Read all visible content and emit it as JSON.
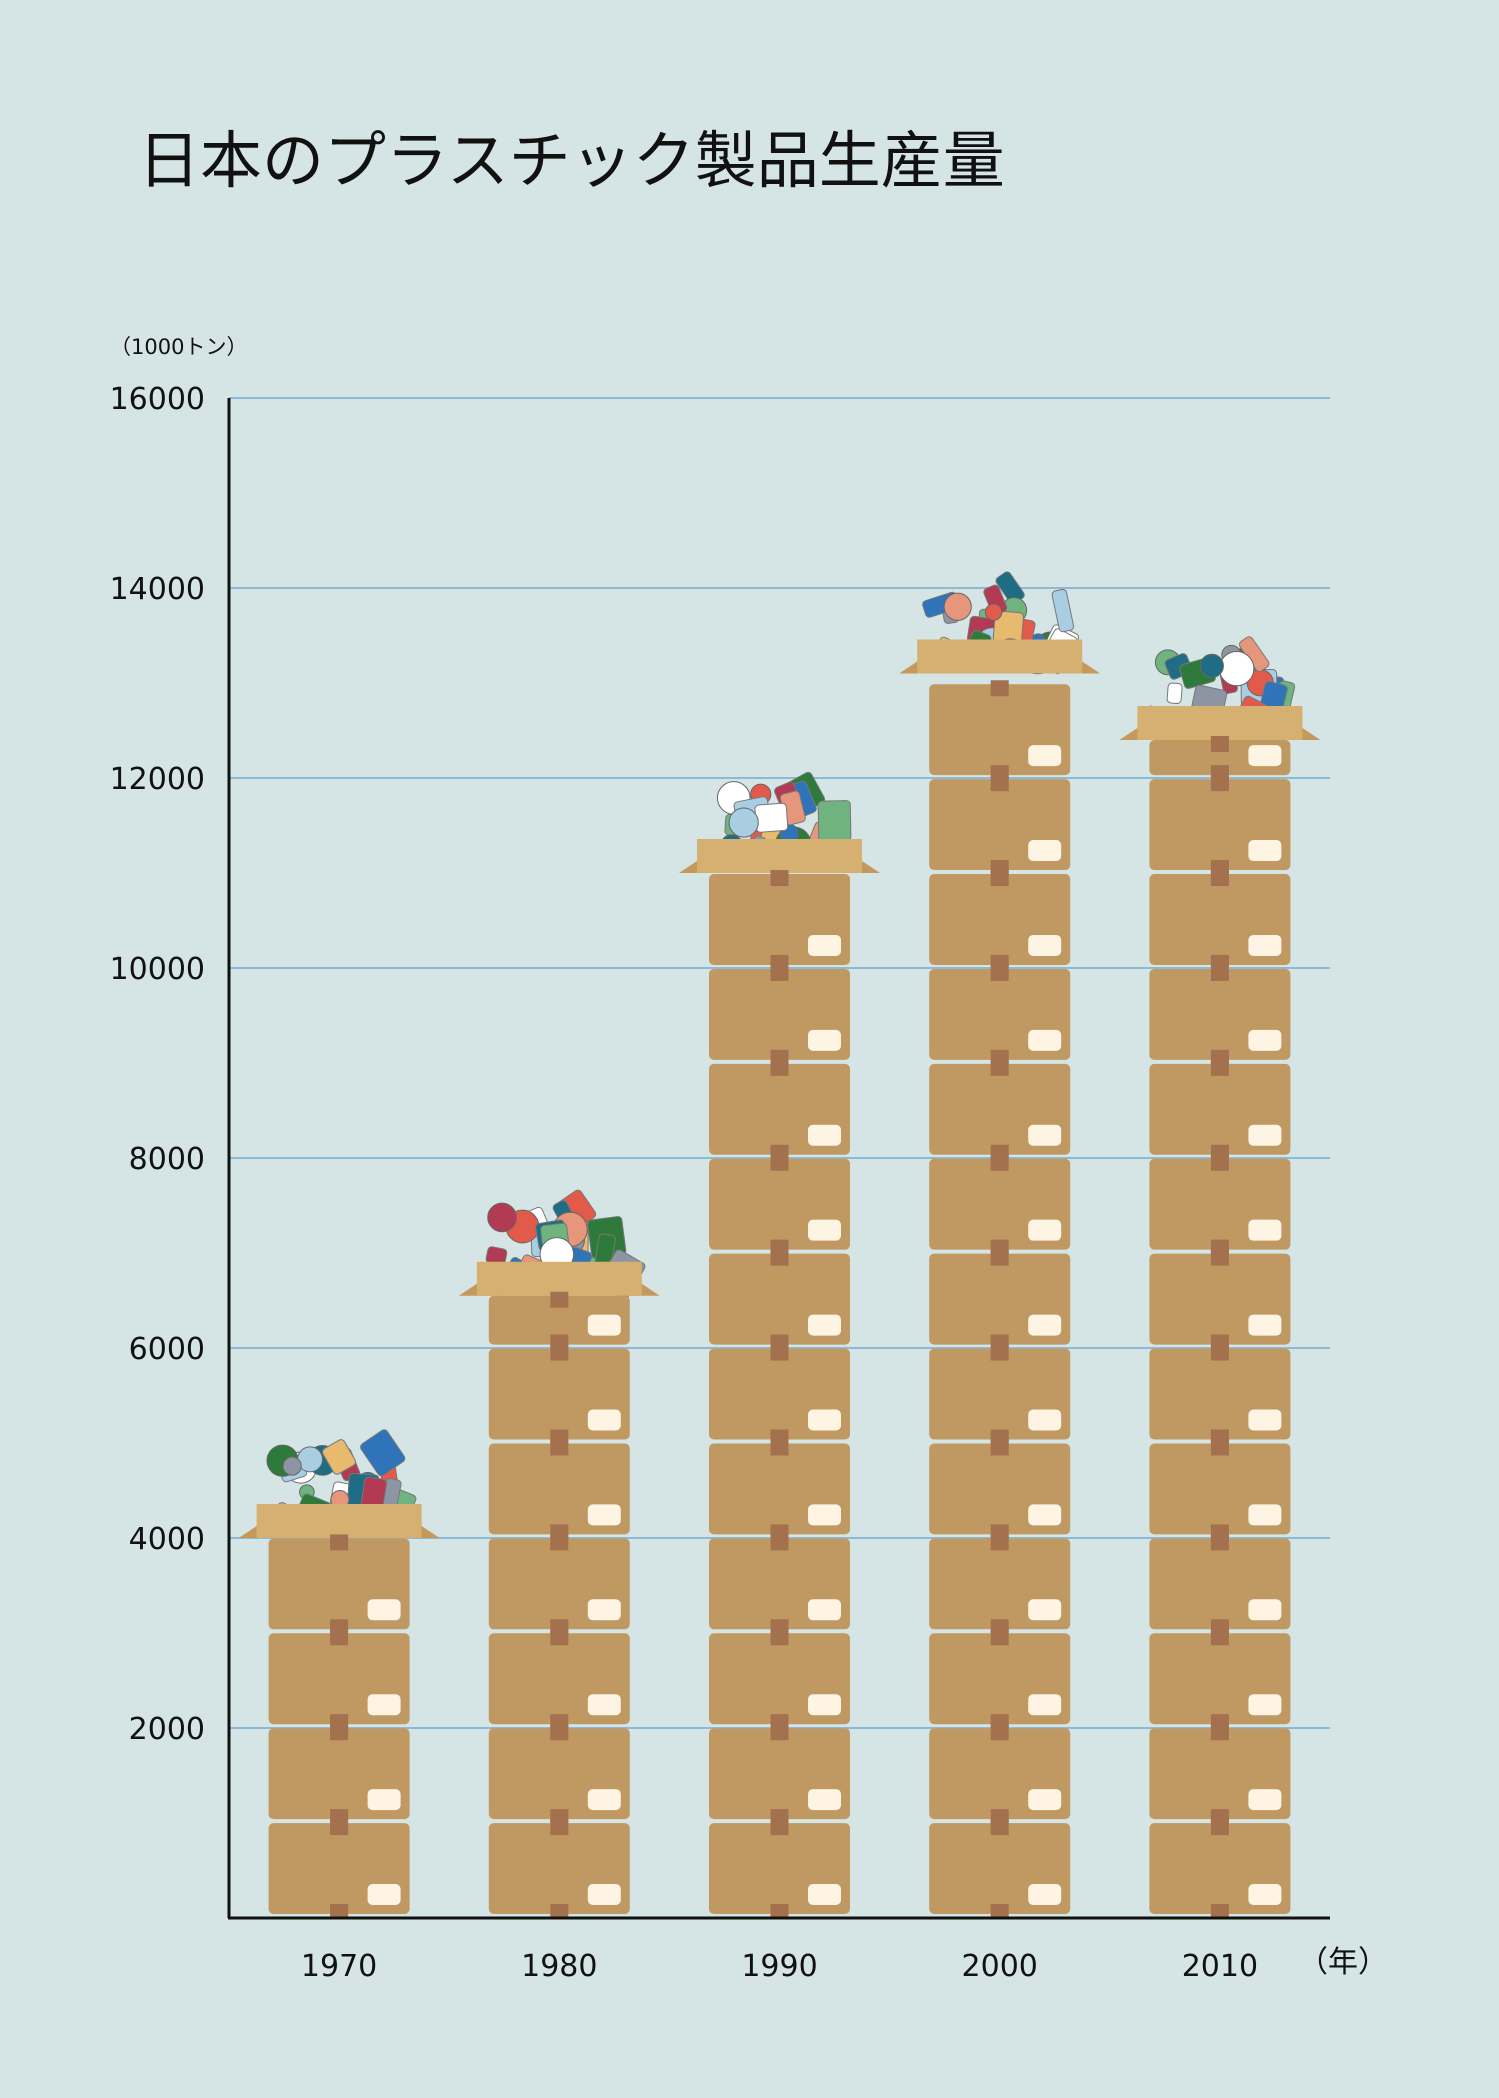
{
  "chart_data": {
    "type": "bar",
    "title": "日本のプラスチック製品生産量",
    "ylabel": "（1000トン）",
    "xlabel": "（年）",
    "categories": [
      "1970",
      "1980",
      "1990",
      "2000",
      "2010"
    ],
    "values": [
      4400,
      6950,
      11400,
      13500,
      12800
    ],
    "ylim": [
      0,
      16000
    ],
    "yticks": [
      "2000",
      "4000",
      "6000",
      "8000",
      "10000",
      "12000",
      "14000",
      "16000"
    ],
    "grid": true,
    "legend": "none"
  },
  "colors": {
    "background": "#d5e4e4",
    "gridline": "#8bb9d6",
    "box": "#bf9862",
    "box_flap": "#d6b070",
    "box_tape": "#a4714e",
    "box_label": "#fdf4e3"
  },
  "item_colors": [
    "#ffffff",
    "#a9cde3",
    "#e25a4a",
    "#1e6d85",
    "#6fb37f",
    "#e7ba6e",
    "#2e7a3a",
    "#8d95a5",
    "#b23a52",
    "#2f73b8",
    "#e6967a"
  ]
}
